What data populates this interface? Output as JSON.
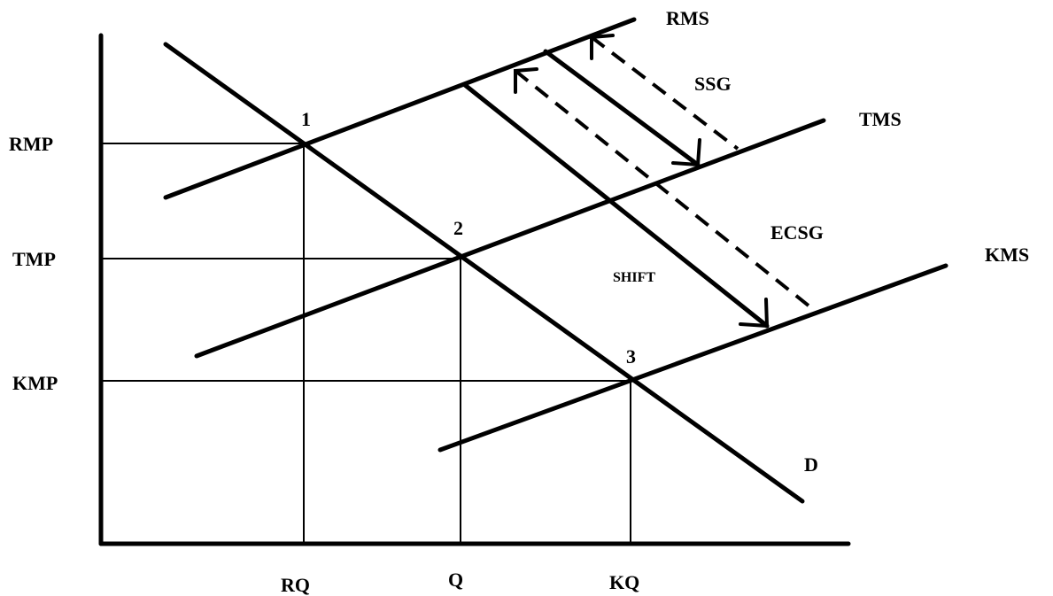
{
  "diagram": {
    "axes": {
      "price_labels": {
        "rmp": "RMP",
        "tmp": "TMP",
        "kmp": "KMP"
      },
      "quantity_labels": {
        "rq": "RQ",
        "q": "Q",
        "kq": "KQ"
      }
    },
    "curves": {
      "rms": "RMS",
      "tms": "TMS",
      "kms": "KMS",
      "demand": "D"
    },
    "points": {
      "p1": "1",
      "p2": "2",
      "p3": "3"
    },
    "annotations": {
      "ssg": "SSG",
      "ecsg": "ECSG",
      "shift": "SHIFT"
    }
  }
}
